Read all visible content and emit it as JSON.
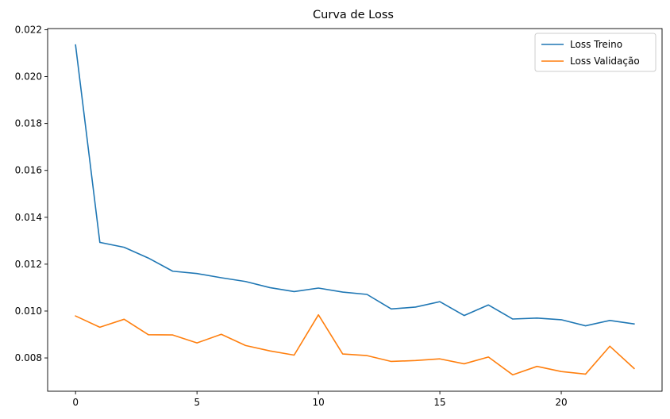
{
  "chart_data": {
    "type": "line",
    "title": "Curva de Loss",
    "xlabel": "",
    "ylabel": "",
    "x": [
      0,
      1,
      2,
      3,
      4,
      5,
      6,
      7,
      8,
      9,
      10,
      11,
      12,
      13,
      14,
      15,
      16,
      17,
      18,
      19,
      20,
      21,
      22,
      23
    ],
    "xlim": [
      -1.15,
      24.15
    ],
    "ylim": [
      0.00658,
      0.02205
    ],
    "xticks": [
      0,
      5,
      10,
      15,
      20
    ],
    "yticks": [
      0.008,
      0.01,
      0.012,
      0.014,
      0.016,
      0.018,
      0.02,
      0.022
    ],
    "ytick_labels": [
      "0.008",
      "0.010",
      "0.012",
      "0.014",
      "0.016",
      "0.018",
      "0.020",
      "0.022"
    ],
    "grid": false,
    "legend_position": "top-right",
    "series": [
      {
        "name": "Loss Treino",
        "color": "#1f77b4",
        "values": [
          0.02135,
          0.01293,
          0.01272,
          0.01226,
          0.0117,
          0.0116,
          0.01142,
          0.01126,
          0.011,
          0.01083,
          0.01098,
          0.01081,
          0.01071,
          0.01009,
          0.01017,
          0.0104,
          0.00981,
          0.01026,
          0.00966,
          0.0097,
          0.00963,
          0.00937,
          0.0096,
          0.00945
        ]
      },
      {
        "name": "Loss Validação",
        "color": "#ff7f0e",
        "values": [
          0.00979,
          0.00931,
          0.00965,
          0.00899,
          0.00898,
          0.00864,
          0.00901,
          0.00853,
          0.0083,
          0.00812,
          0.00984,
          0.00817,
          0.0081,
          0.00785,
          0.00789,
          0.00796,
          0.00775,
          0.00804,
          0.00728,
          0.00764,
          0.00742,
          0.00731,
          0.0085,
          0.00755
        ]
      }
    ]
  }
}
